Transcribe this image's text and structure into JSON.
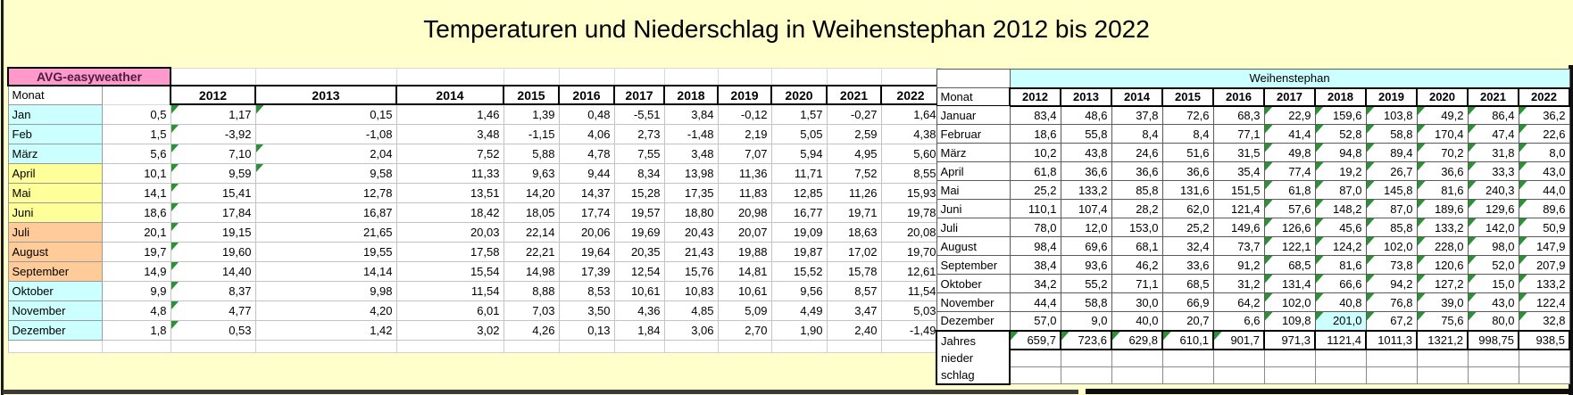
{
  "title": "Temperaturen und Niederschlag in Weihenstephan 2012 bis 2022",
  "colors": {
    "background": "#FFFFCC",
    "pink_header": "#FF99CC",
    "cyan": "#CCFFFF",
    "yellow": "#FFFF99",
    "orange": "#FFCC99",
    "triangle_green": "#2a9235",
    "highlight": "#CCFFFF"
  },
  "left_table": {
    "header": "AVG-easyweather",
    "monat_label": "Monat",
    "years": [
      "2012",
      "2013",
      "2014",
      "2015",
      "2016",
      "2017",
      "2018",
      "2019",
      "2020",
      "2021",
      "2022"
    ],
    "rows": [
      {
        "month": "Jan",
        "group": "cyan",
        "avg": "0,5",
        "values": [
          "1,17",
          "0,15",
          "1,46",
          "1,39",
          "0,48",
          "-5,51",
          "3,84",
          "-0,12",
          "1,57",
          "-0,27",
          "1,64"
        ],
        "flags": [
          0,
          1
        ]
      },
      {
        "month": "Feb",
        "group": "cyan",
        "avg": "1,5",
        "values": [
          "-3,92",
          "-1,08",
          "3,48",
          "-1,15",
          "4,06",
          "2,73",
          "-1,48",
          "2,19",
          "5,05",
          "2,59",
          "4,38"
        ],
        "flags": [
          0
        ]
      },
      {
        "month": "März",
        "group": "cyan",
        "avg": "5,6",
        "values": [
          "7,10",
          "2,04",
          "7,52",
          "5,88",
          "4,78",
          "7,55",
          "3,48",
          "7,07",
          "5,94",
          "4,95",
          "5,60"
        ],
        "flags": [
          0,
          1
        ]
      },
      {
        "month": "April",
        "group": "yellow",
        "avg": "10,1",
        "values": [
          "9,59",
          "9,58",
          "11,33",
          "9,63",
          "9,44",
          "8,34",
          "13,98",
          "11,36",
          "11,71",
          "7,52",
          "8,55"
        ],
        "flags": [
          0,
          1
        ]
      },
      {
        "month": "Mai",
        "group": "yellow",
        "avg": "14,1",
        "values": [
          "15,41",
          "12,78",
          "13,51",
          "14,20",
          "14,37",
          "15,28",
          "17,35",
          "11,83",
          "12,85",
          "11,26",
          "15,93"
        ],
        "flags": [
          0
        ]
      },
      {
        "month": "Juni",
        "group": "yellow",
        "avg": "18,6",
        "values": [
          "17,84",
          "16,87",
          "18,42",
          "18,05",
          "17,74",
          "19,57",
          "18,80",
          "20,98",
          "16,77",
          "19,71",
          "19,78"
        ],
        "flags": [
          0
        ]
      },
      {
        "month": "Juli",
        "group": "orange",
        "avg": "20,1",
        "values": [
          "19,15",
          "21,65",
          "20,03",
          "22,14",
          "20,06",
          "19,69",
          "20,43",
          "20,07",
          "19,09",
          "18,63",
          "20,08"
        ],
        "flags": [
          0
        ]
      },
      {
        "month": "August",
        "group": "orange",
        "avg": "19,7",
        "values": [
          "19,60",
          "19,55",
          "17,58",
          "22,21",
          "19,64",
          "20,35",
          "21,43",
          "19,88",
          "19,87",
          "17,02",
          "19,70"
        ],
        "flags": [
          0
        ]
      },
      {
        "month": "September",
        "group": "orange",
        "avg": "14,9",
        "values": [
          "14,40",
          "14,14",
          "15,54",
          "14,98",
          "17,39",
          "12,54",
          "15,76",
          "14,81",
          "15,52",
          "15,78",
          "12,61"
        ],
        "flags": [
          0
        ]
      },
      {
        "month": "Oktober",
        "group": "cyan",
        "avg": "9,9",
        "values": [
          "8,37",
          "9,98",
          "11,54",
          "8,88",
          "8,53",
          "10,61",
          "10,83",
          "10,61",
          "9,56",
          "8,57",
          "11,54"
        ],
        "flags": [
          0
        ]
      },
      {
        "month": "November",
        "group": "cyan",
        "avg": "4,8",
        "values": [
          "4,77",
          "4,20",
          "6,01",
          "7,03",
          "3,50",
          "4,36",
          "4,85",
          "5,09",
          "4,49",
          "3,47",
          "5,03"
        ],
        "flags": [
          0
        ]
      },
      {
        "month": "Dezember",
        "group": "cyan",
        "avg": "1,8",
        "values": [
          "0,53",
          "1,42",
          "3,02",
          "4,26",
          "0,13",
          "1,84",
          "3,06",
          "2,70",
          "1,90",
          "2,40",
          "-1,49"
        ],
        "flags": [
          0
        ]
      }
    ]
  },
  "right_table": {
    "header": "Weihenstephan",
    "monat_label": "Monat",
    "years": [
      "2012",
      "2013",
      "2014",
      "2015",
      "2016",
      "2017",
      "2018",
      "2019",
      "2020",
      "2021",
      "2022"
    ],
    "rows": [
      {
        "month": "Januar",
        "values": [
          "83,4",
          "48,6",
          "37,8",
          "72,6",
          "68,3",
          "22,9",
          "159,6",
          "103,8",
          "49,2",
          "86,4",
          "36,2"
        ],
        "flags": [
          5,
          6,
          7,
          8,
          9,
          10
        ]
      },
      {
        "month": "Februar",
        "values": [
          "18,6",
          "55,8",
          "8,4",
          "8,4",
          "77,1",
          "41,4",
          "52,8",
          "58,8",
          "170,4",
          "47,4",
          "22,6"
        ],
        "flags": [
          5,
          6,
          7,
          8,
          9,
          10
        ]
      },
      {
        "month": "März",
        "values": [
          "10,2",
          "43,8",
          "24,6",
          "51,6",
          "31,5",
          "49,8",
          "94,8",
          "89,4",
          "70,2",
          "31,8",
          "8,0"
        ],
        "flags": [
          5,
          6,
          7,
          8,
          9,
          10
        ]
      },
      {
        "month": "April",
        "values": [
          "61,8",
          "36,6",
          "36,6",
          "36,6",
          "35,4",
          "77,4",
          "19,2",
          "26,7",
          "36,6",
          "33,3",
          "43,0"
        ],
        "flags": [
          5,
          6,
          7,
          8,
          9,
          10
        ]
      },
      {
        "month": "Mai",
        "values": [
          "25,2",
          "133,2",
          "85,8",
          "131,6",
          "151,5",
          "61,8",
          "87,0",
          "145,8",
          "81,6",
          "240,3",
          "44,0"
        ],
        "flags": [
          5,
          6,
          7,
          8,
          9,
          10
        ]
      },
      {
        "month": "Juni",
        "values": [
          "110,1",
          "107,4",
          "28,2",
          "62,0",
          "121,4",
          "57,6",
          "148,2",
          "87,0",
          "189,6",
          "129,6",
          "89,6"
        ],
        "flags": [
          5,
          6,
          7,
          8,
          9,
          10
        ]
      },
      {
        "month": "Juli",
        "values": [
          "78,0",
          "12,0",
          "153,0",
          "25,2",
          "149,6",
          "126,6",
          "45,6",
          "85,8",
          "133,2",
          "142,0",
          "50,9"
        ],
        "flags": [
          5,
          6,
          7,
          8,
          9,
          10
        ]
      },
      {
        "month": "August",
        "values": [
          "98,4",
          "69,6",
          "68,1",
          "32,4",
          "73,7",
          "122,1",
          "124,2",
          "102,0",
          "228,0",
          "98,0",
          "147,9"
        ],
        "flags": [
          5,
          6,
          7,
          8,
          9,
          10
        ]
      },
      {
        "month": "September",
        "values": [
          "38,4",
          "93,6",
          "46,2",
          "33,6",
          "91,2",
          "68,5",
          "81,6",
          "73,8",
          "120,6",
          "52,0",
          "207,9"
        ],
        "flags": [
          5,
          6,
          7,
          8,
          9,
          10
        ]
      },
      {
        "month": "Oktober",
        "values": [
          "34,2",
          "55,2",
          "71,1",
          "68,5",
          "31,2",
          "131,4",
          "66,6",
          "94,2",
          "127,2",
          "15,0",
          "133,2"
        ],
        "flags": [
          5,
          6,
          7,
          8,
          9,
          10
        ]
      },
      {
        "month": "November",
        "values": [
          "44,4",
          "58,8",
          "30,0",
          "66,9",
          "64,2",
          "102,0",
          "40,8",
          "76,8",
          "39,0",
          "43,0",
          "122,4"
        ],
        "flags": [
          5,
          6,
          7,
          8,
          9,
          10
        ]
      },
      {
        "month": "Dezember",
        "values": [
          "57,0",
          "9,0",
          "40,0",
          "20,7",
          "6,6",
          "109,8",
          "201,0",
          "67,2",
          "75,6",
          "80,0",
          "32,8"
        ],
        "flags": [
          5,
          6,
          7,
          8,
          9,
          10
        ]
      }
    ],
    "highlight": {
      "row": 11,
      "col": 6
    },
    "total_row": {
      "label_lines": [
        "Jahres",
        "nieder",
        "schlag"
      ],
      "values": [
        "659,7",
        "723,6",
        "629,8",
        "610,1",
        "901,7",
        "971,3",
        "1121,4",
        "1011,3",
        "1321,2",
        "998,75",
        "938,5"
      ],
      "flags": [
        0,
        1,
        2,
        3,
        4
      ]
    }
  }
}
